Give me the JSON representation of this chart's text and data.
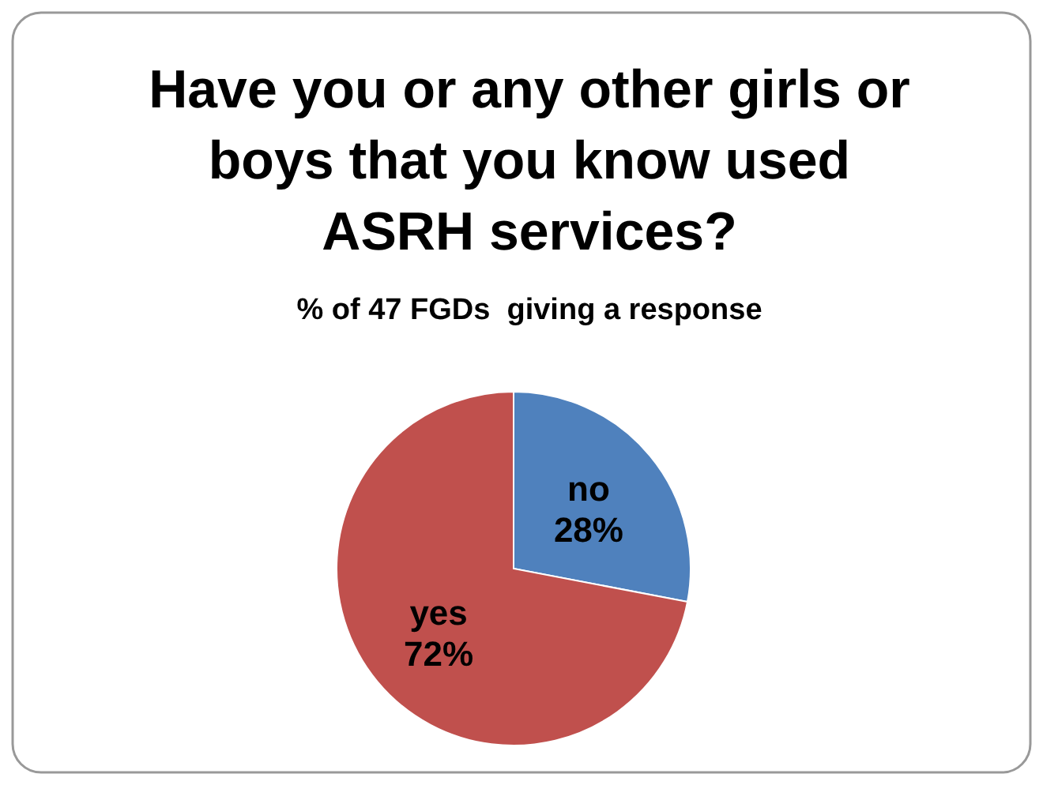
{
  "chart_data": {
    "type": "pie",
    "title": "Have you or any other girls or boys that you know used ASRH services?",
    "subtitle": "% of 47 FGDs  giving a response",
    "categories": [
      "no",
      "yes"
    ],
    "values": [
      28,
      72
    ],
    "colors": [
      "#4f81bd",
      "#c0504d"
    ],
    "value_labels": [
      "28%",
      "72%"
    ]
  }
}
